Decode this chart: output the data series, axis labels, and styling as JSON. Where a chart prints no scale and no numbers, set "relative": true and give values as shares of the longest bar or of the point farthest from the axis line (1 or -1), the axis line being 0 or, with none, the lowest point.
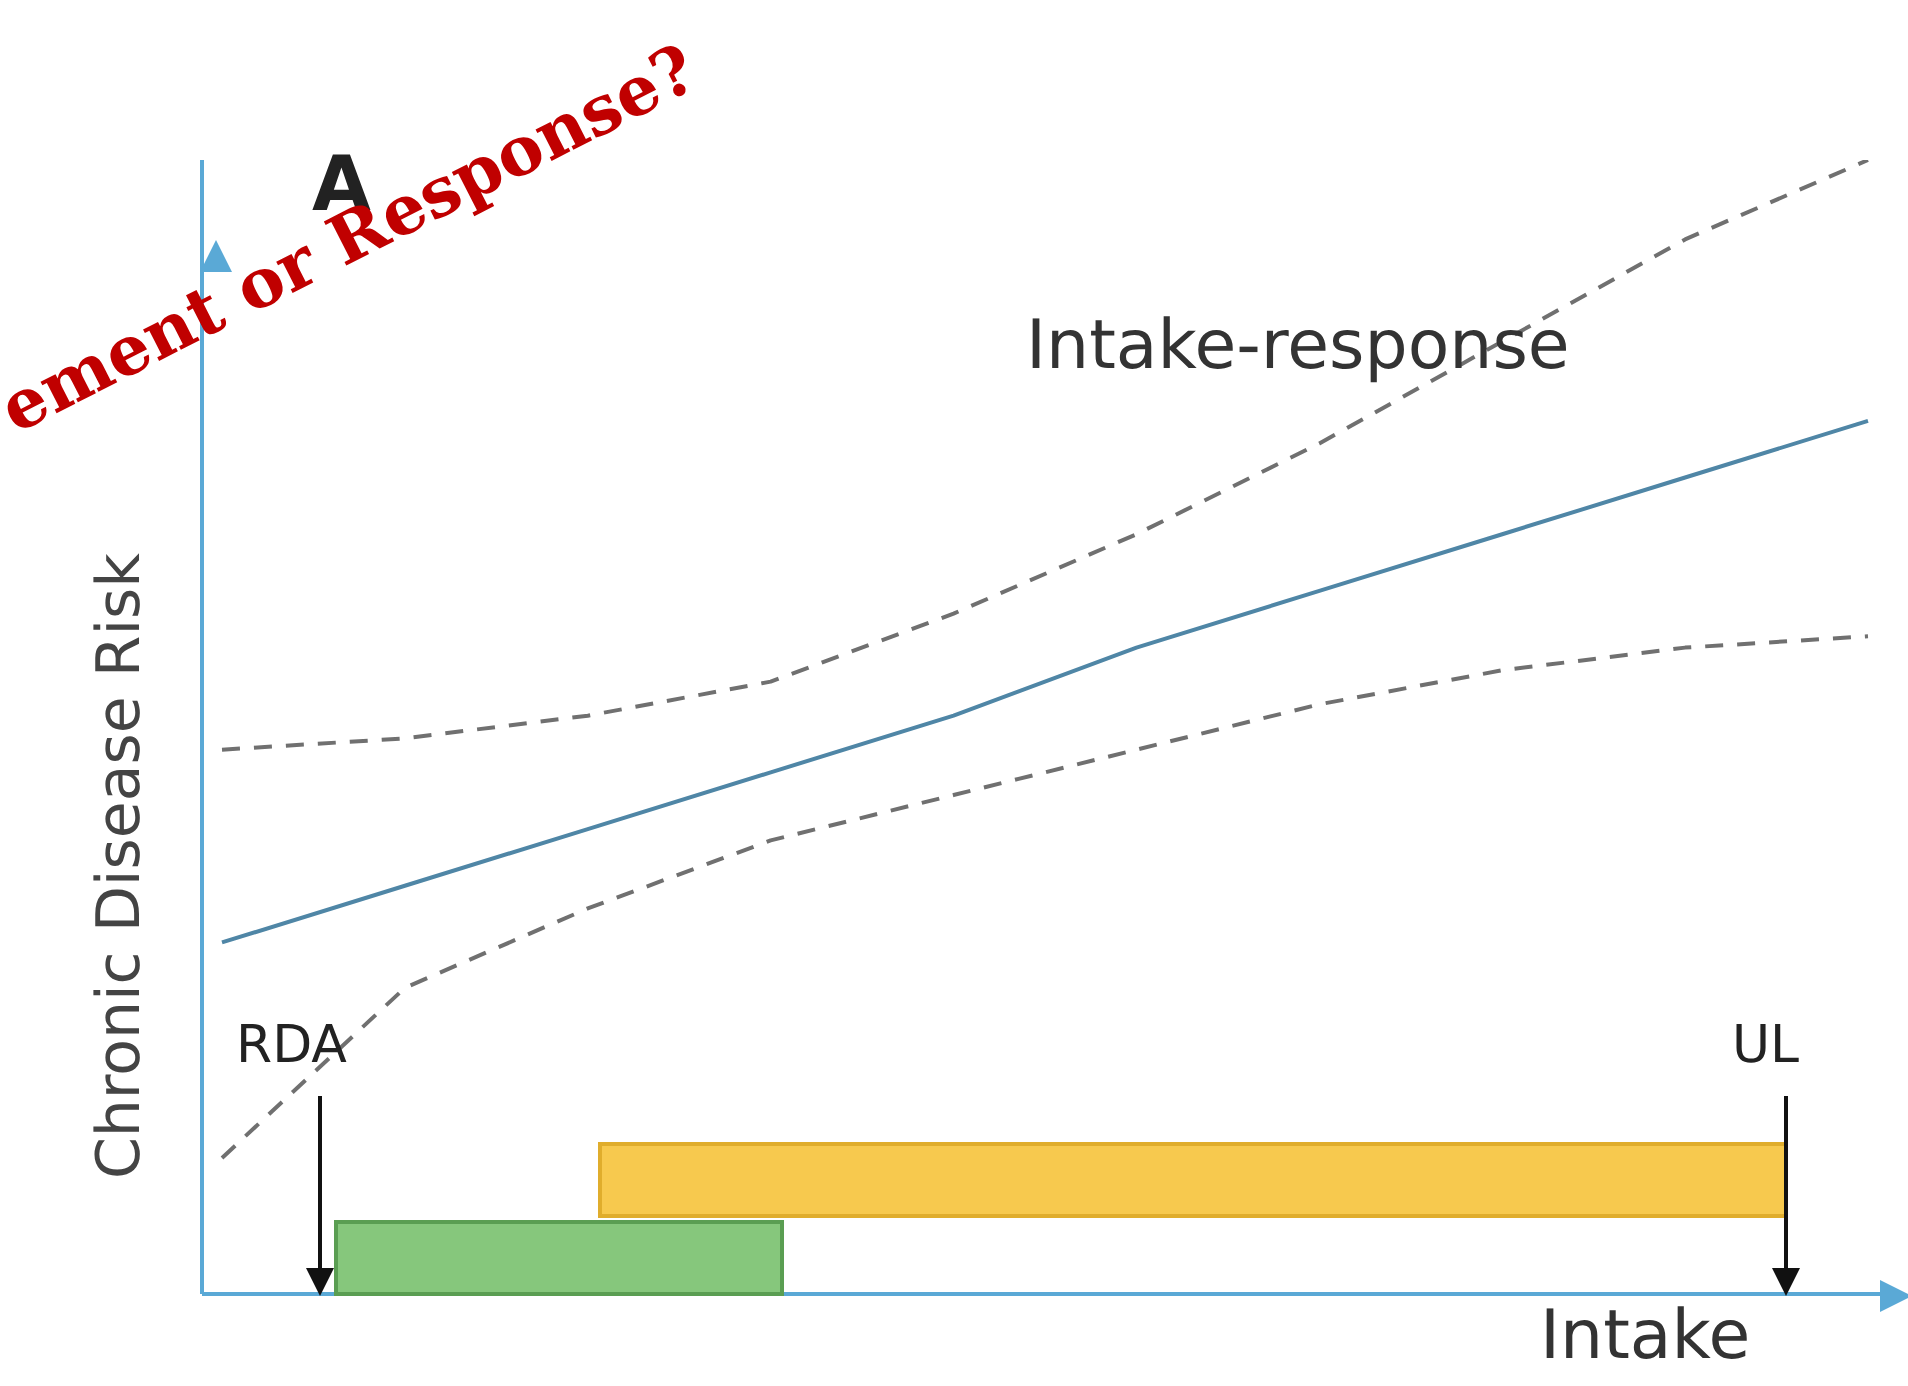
{
  "chart_data": {
    "type": "line",
    "relative": true,
    "xlabel": "Intake",
    "ylabel": "Chronic Disease Risk",
    "annotations": [
      "A",
      "RDA",
      "UL",
      "ement or Response?"
    ],
    "marker": "none",
    "categories": [
      null,
      null,
      null,
      null,
      null,
      null,
      null,
      null,
      null,
      null
    ],
    "series": [
      {
        "name": "Intake-response",
        "color": "#4f86a6",
        "line_style": "solid",
        "values": [
          0.31,
          0.36,
          0.41,
          0.46,
          0.51,
          0.57,
          0.62,
          0.67,
          0.72,
          0.77
        ]
      },
      {
        "color": "#707070",
        "line_style": "dashed",
        "values": [
          0.48,
          0.49,
          0.51,
          0.54,
          0.6,
          0.67,
          0.75,
          0.84,
          0.93,
          1.0
        ]
      },
      {
        "color": "#707070",
        "line_style": "dashed",
        "values": [
          0.12,
          0.27,
          0.34,
          0.4,
          0.44,
          0.48,
          0.52,
          0.55,
          0.57,
          0.58
        ]
      }
    ]
  }
}
